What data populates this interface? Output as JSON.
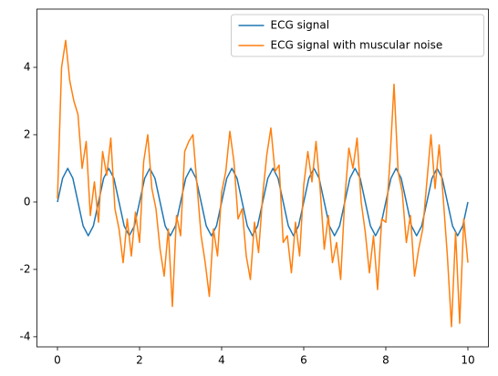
{
  "chart_data": {
    "type": "line",
    "xlim": [
      -0.5,
      10.5
    ],
    "ylim": [
      -4.3,
      5.73
    ],
    "xticks": [
      0,
      2,
      4,
      6,
      8,
      10
    ],
    "yticks": [
      -4,
      -2,
      0,
      2,
      4
    ],
    "legend": "upper right",
    "grid": false,
    "series": [
      {
        "name": "ECG signal",
        "color": "#1f77b4",
        "x": [
          0,
          0.125,
          0.25,
          0.375,
          0.5,
          0.625,
          0.75,
          0.875,
          1,
          1.125,
          1.25,
          1.375,
          1.5,
          1.625,
          1.75,
          1.875,
          2,
          2.125,
          2.25,
          2.375,
          2.5,
          2.625,
          2.75,
          2.875,
          3,
          3.125,
          3.25,
          3.375,
          3.5,
          3.625,
          3.75,
          3.875,
          4,
          4.125,
          4.25,
          4.375,
          4.5,
          4.625,
          4.75,
          4.875,
          5,
          5.125,
          5.25,
          5.375,
          5.5,
          5.625,
          5.75,
          5.875,
          6,
          6.125,
          6.25,
          6.375,
          6.5,
          6.625,
          6.75,
          6.875,
          7,
          7.125,
          7.25,
          7.375,
          7.5,
          7.625,
          7.75,
          7.875,
          8,
          8.125,
          8.25,
          8.375,
          8.5,
          8.625,
          8.75,
          8.875,
          9,
          9.125,
          9.25,
          9.375,
          9.5,
          9.625,
          9.75,
          9.875,
          10
        ],
        "values": [
          0,
          0.707,
          1,
          0.707,
          0,
          -0.707,
          -1,
          -0.707,
          0,
          0.707,
          1,
          0.707,
          0,
          -0.707,
          -1,
          -0.707,
          0,
          0.707,
          1,
          0.707,
          0,
          -0.707,
          -1,
          -0.707,
          0,
          0.707,
          1,
          0.707,
          0,
          -0.707,
          -1,
          -0.707,
          0,
          0.707,
          1,
          0.707,
          0,
          -0.707,
          -1,
          -0.707,
          0,
          0.707,
          1,
          0.707,
          0,
          -0.707,
          -1,
          -0.707,
          0,
          0.707,
          1,
          0.707,
          0,
          -0.707,
          -1,
          -0.707,
          0,
          0.707,
          1,
          0.707,
          0,
          -0.707,
          -1,
          -0.707,
          0,
          0.707,
          1,
          0.707,
          0,
          -0.707,
          -1,
          -0.707,
          0,
          0.707,
          1,
          0.707,
          0,
          -0.707,
          -1,
          -0.707,
          0
        ]
      },
      {
        "name": "ECG signal with muscular noise",
        "color": "#ff7f0e",
        "x": [
          0,
          0.1,
          0.2,
          0.3,
          0.4,
          0.5,
          0.6,
          0.7,
          0.8,
          0.9,
          1,
          1.1,
          1.2,
          1.3,
          1.4,
          1.5,
          1.6,
          1.7,
          1.8,
          1.9,
          2,
          2.1,
          2.2,
          2.3,
          2.4,
          2.5,
          2.6,
          2.7,
          2.8,
          2.9,
          3,
          3.1,
          3.2,
          3.3,
          3.4,
          3.5,
          3.6,
          3.7,
          3.8,
          3.9,
          4,
          4.1,
          4.2,
          4.3,
          4.4,
          4.5,
          4.6,
          4.7,
          4.8,
          4.9,
          5,
          5.1,
          5.2,
          5.3,
          5.4,
          5.5,
          5.6,
          5.7,
          5.8,
          5.9,
          6,
          6.1,
          6.2,
          6.3,
          6.4,
          6.5,
          6.6,
          6.7,
          6.8,
          6.9,
          7,
          7.1,
          7.2,
          7.3,
          7.4,
          7.5,
          7.6,
          7.7,
          7.8,
          7.9,
          8,
          8.1,
          8.2,
          8.3,
          8.4,
          8.5,
          8.6,
          8.7,
          8.8,
          8.9,
          9,
          9.1,
          9.2,
          9.3,
          9.4,
          9.5,
          9.6,
          9.7,
          9.8,
          9.9,
          10
        ],
        "values": [
          0.1,
          4.0,
          4.8,
          3.6,
          3.0,
          2.6,
          1.0,
          1.8,
          -0.4,
          0.6,
          -0.6,
          1.5,
          0.8,
          1.9,
          -0.2,
          -0.8,
          -1.8,
          -0.5,
          -1.6,
          -0.3,
          -1.2,
          1.2,
          2.0,
          0.4,
          -0.2,
          -1.4,
          -2.2,
          -0.8,
          -3.1,
          -0.4,
          -1.0,
          1.5,
          1.8,
          2.0,
          0.5,
          -1.0,
          -1.8,
          -2.8,
          -0.8,
          -1.6,
          0.3,
          0.9,
          2.1,
          1.2,
          -0.5,
          -0.2,
          -1.6,
          -2.3,
          -0.6,
          -1.5,
          0.2,
          1.4,
          2.2,
          0.9,
          1.1,
          -1.2,
          -1.0,
          -2.1,
          -0.6,
          -1.6,
          0.5,
          1.5,
          0.6,
          1.8,
          0.4,
          -1.4,
          -0.4,
          -1.8,
          -1.2,
          -2.3,
          0.1,
          1.6,
          1.0,
          1.9,
          0.0,
          -0.9,
          -2.1,
          -1.0,
          -2.6,
          -0.5,
          -0.6,
          1.2,
          3.5,
          0.9,
          0.3,
          -1.2,
          -0.4,
          -2.2,
          -1.4,
          -0.8,
          0.6,
          2.0,
          0.4,
          1.7,
          0.1,
          -1.6,
          -3.7,
          -0.9,
          -3.6,
          -0.5,
          -1.8
        ]
      }
    ]
  }
}
